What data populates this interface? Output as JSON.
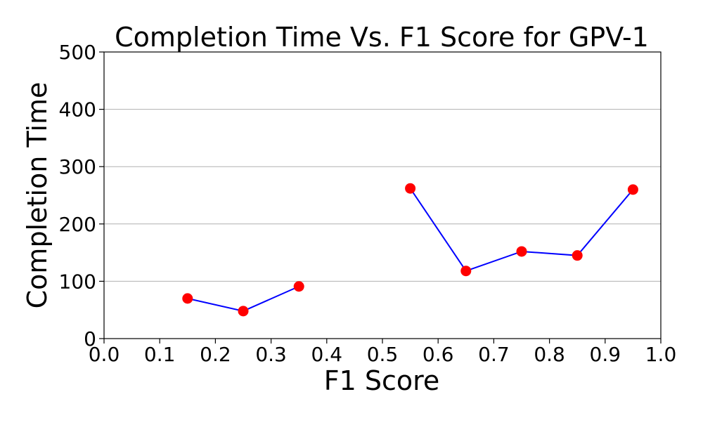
{
  "chart_data": {
    "type": "line",
    "title": "Completion Time Vs. F1 Score for GPV-1",
    "xlabel": "F1 Score",
    "ylabel": "Completion Time",
    "xlim": [
      0.0,
      1.0
    ],
    "ylim": [
      0,
      500
    ],
    "x_ticks": [
      "0.0",
      "0.1",
      "0.2",
      "0.3",
      "0.4",
      "0.5",
      "0.6",
      "0.7",
      "0.8",
      "0.9",
      "1.0"
    ],
    "y_ticks": [
      "0",
      "100",
      "200",
      "300",
      "400",
      "500"
    ],
    "grid": "horizontal",
    "line_color": "#0000ff",
    "marker_color": "#ff0000",
    "series": [
      {
        "points": [
          {
            "x": 0.15,
            "y": 70
          },
          {
            "x": 0.25,
            "y": 48
          },
          {
            "x": 0.35,
            "y": 91
          },
          {
            "x": 0.45,
            "y": null
          },
          {
            "x": 0.55,
            "y": 262
          },
          {
            "x": 0.65,
            "y": 118
          },
          {
            "x": 0.75,
            "y": 152
          },
          {
            "x": 0.85,
            "y": 145
          },
          {
            "x": 0.95,
            "y": 260
          }
        ]
      }
    ]
  }
}
